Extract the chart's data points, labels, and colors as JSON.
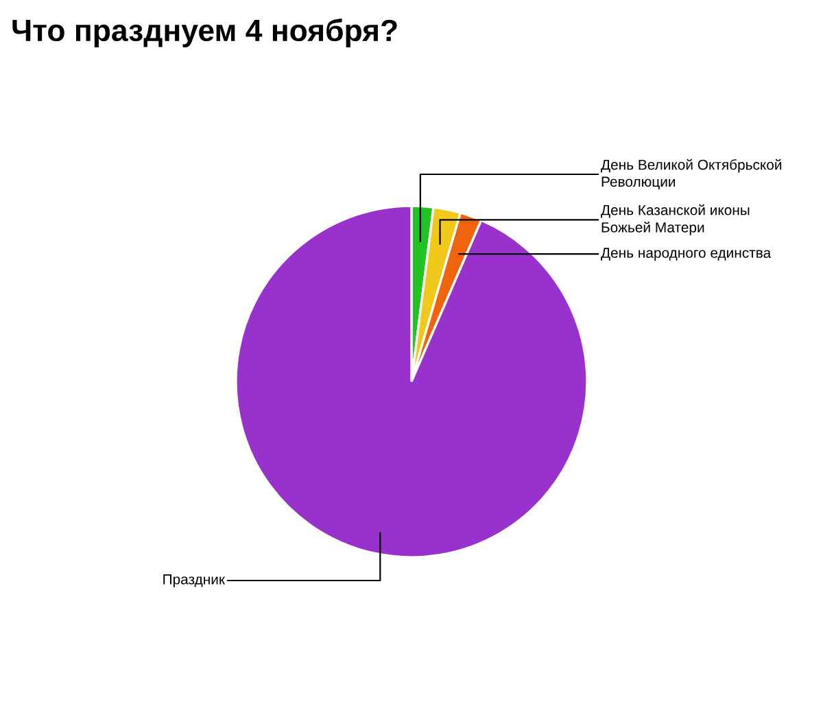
{
  "chart_data": {
    "type": "pie",
    "title": "Что празднуем 4 ноября?",
    "categories": [
      "День Великой Октябрьской\nРеволюции",
      "День Казанской иконы\nБожьей Матери",
      "День народного единства",
      "Праздник"
    ],
    "values": [
      2,
      2.5,
      2,
      93.5
    ],
    "colors": [
      "#22c322",
      "#f2c81a",
      "#f0640f",
      "#9932cc"
    ],
    "legend": false
  }
}
